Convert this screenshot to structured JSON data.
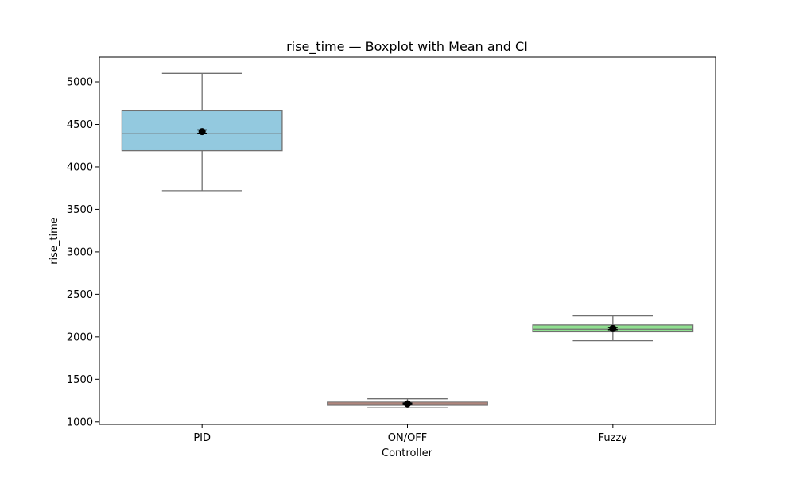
{
  "chart_data": {
    "type": "boxplot",
    "title": "rise_time — Boxplot with Mean and CI",
    "xlabel": "Controller",
    "ylabel": "rise_time",
    "ylim": [
      970,
      5290
    ],
    "yticks": [
      1000,
      1500,
      2000,
      2500,
      3000,
      3500,
      4000,
      4500,
      5000
    ],
    "grid": false,
    "categories": [
      "PID",
      "ON/OFF",
      "Fuzzy"
    ],
    "boxes": [
      {
        "category": "PID",
        "whisker_low": 3720,
        "q1": 4190,
        "median": 4390,
        "q3": 4660,
        "whisker_high": 5100,
        "mean": 4415,
        "ci": [
          4395,
          4435
        ],
        "color": "#93c9df"
      },
      {
        "category": "ON/OFF",
        "whisker_low": 1165,
        "q1": 1195,
        "median": 1212,
        "q3": 1232,
        "whisker_high": 1272,
        "mean": 1212,
        "ci": [
          1205,
          1220
        ],
        "color": "#ee9b8a"
      },
      {
        "category": "Fuzzy",
        "whisker_low": 1955,
        "q1": 2060,
        "median": 2090,
        "q3": 2140,
        "whisker_high": 2245,
        "mean": 2098,
        "ci": [
          2085,
          2110
        ],
        "color": "#90e090"
      }
    ]
  }
}
